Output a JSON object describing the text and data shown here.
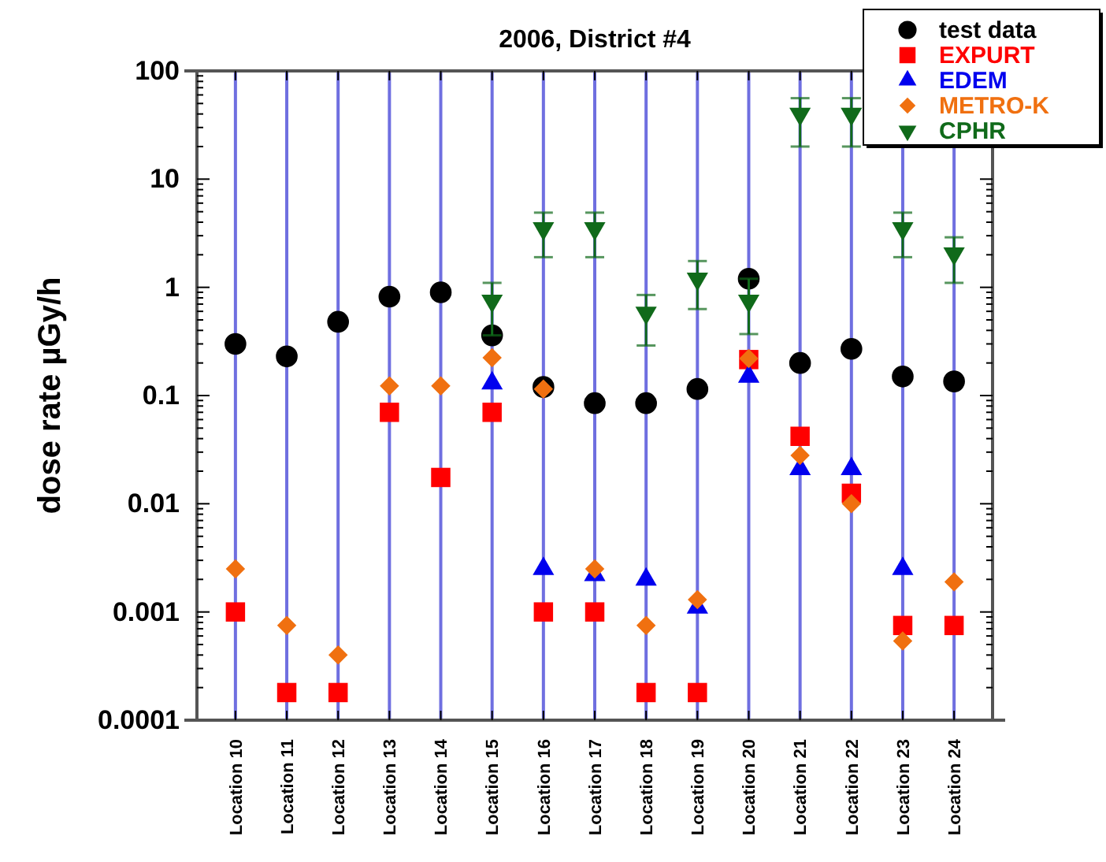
{
  "chart_data": {
    "type": "scatter",
    "title": "2006, District #4",
    "ylabel": "dose rate µGy/h",
    "categories": [
      "Location 10",
      "Location 11",
      "Location 12",
      "Location 13",
      "Location 14",
      "Location 15",
      "Location 16",
      "Location 17",
      "Location 18",
      "Location 19",
      "Location 20",
      "Location 21",
      "Location 22",
      "Location 23",
      "Location 24"
    ],
    "log": true,
    "ylim": [
      0.0001,
      100
    ],
    "yticks": [
      0.0001,
      0.001,
      0.01,
      0.1,
      1,
      10,
      100
    ],
    "grid": "x",
    "legend": "top right",
    "series": [
      {
        "name": "test data",
        "color": "#000000",
        "marker": "circle",
        "values": [
          0.3,
          0.23,
          0.48,
          0.82,
          0.9,
          0.36,
          0.12,
          0.085,
          0.085,
          0.115,
          1.2,
          0.2,
          0.27,
          0.15,
          0.135
        ]
      },
      {
        "name": "EXPURT",
        "color": "#ff0000",
        "marker": "square",
        "values": [
          0.001,
          0.00018,
          0.00018,
          0.07,
          0.0175,
          0.07,
          0.001,
          0.001,
          0.00018,
          0.00018,
          0.215,
          0.042,
          0.0125,
          0.00075,
          0.00075
        ]
      },
      {
        "name": "EDEM",
        "color": "#0000ee",
        "marker": "triangle",
        "values": [
          null,
          null,
          null,
          null,
          null,
          0.13,
          0.0025,
          0.0022,
          0.002,
          0.0011,
          0.15,
          0.021,
          0.021,
          0.0025,
          null
        ]
      },
      {
        "name": "METRO-K",
        "color": "#f07010",
        "marker": "diamond",
        "values": [
          0.0025,
          0.00075,
          0.0004,
          0.123,
          0.123,
          0.224,
          0.115,
          0.0025,
          0.00075,
          0.0013,
          0.22,
          0.028,
          0.01,
          0.00054,
          0.0019
        ]
      },
      {
        "name": "CPHR",
        "color": "#106a1a",
        "marker": "triangle-down",
        "values": [
          null,
          null,
          null,
          null,
          null,
          0.75,
          3.5,
          3.5,
          0.58,
          1.2,
          0.75,
          40,
          40,
          3.5,
          2.05
        ],
        "errors": [
          null,
          null,
          null,
          null,
          null,
          [
            0.36,
            1.1
          ],
          [
            1.9,
            4.9
          ],
          [
            1.9,
            4.9
          ],
          [
            0.29,
            0.85
          ],
          [
            0.63,
            1.75
          ],
          [
            0.37,
            1.2
          ],
          [
            20,
            56
          ],
          [
            20,
            56
          ],
          [
            1.9,
            4.9
          ],
          [
            1.1,
            2.9
          ]
        ]
      }
    ]
  }
}
